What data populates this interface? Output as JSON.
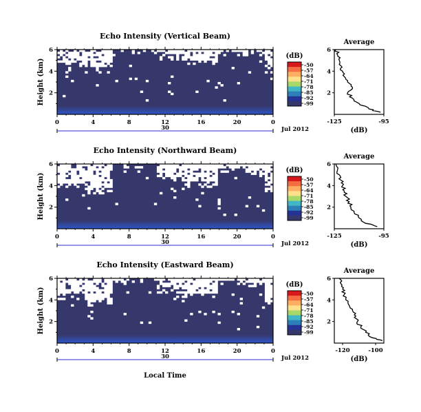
{
  "figure": {
    "date_label": "Jul 2012",
    "x_axis_label": "Local Time",
    "colors": {
      "background_echo": "#36386b",
      "grid_missing": "#ffffff",
      "axis": "#000000"
    }
  },
  "chart_data": [
    {
      "type": "heatmap",
      "title": "Echo Intensity (Vertical Beam)",
      "ylabel": "Height (km)",
      "x_ticks": [
        "0",
        "4",
        "8",
        "12",
        "16",
        "20",
        "0"
      ],
      "date_day": "30",
      "date_label": "Jul 2012",
      "y_ticks": [
        "6",
        "4",
        "2"
      ],
      "ylim": [
        0,
        6
      ],
      "xlim_hours": [
        0,
        24
      ],
      "colorbar": {
        "unit": "(dB)",
        "ticks": [
          "-50",
          "-57",
          "-64",
          "-71",
          "-78",
          "-85",
          "-92",
          "-99"
        ],
        "colors": [
          "#d7191c",
          "#f46d43",
          "#fdae61",
          "#fee08b",
          "#a6d96a",
          "#41b6c4",
          "#2c7fb8",
          "#253494",
          "#36386b"
        ]
      },
      "profile": {
        "title": "Average",
        "xlabel": "(dB)",
        "x_ticks": [
          "-125",
          "-95"
        ],
        "xlim": [
          -125,
          -95
        ],
        "y_ticks": [
          "6",
          "4",
          "2"
        ],
        "ylim": [
          0,
          6
        ],
        "height_km": [
          0.2,
          0.5,
          1.0,
          1.5,
          2.0,
          2.5,
          3.0,
          3.5,
          4.0,
          4.5,
          5.0,
          5.5,
          6.0
        ],
        "avg_db": [
          -97,
          -104,
          -110,
          -114,
          -117,
          -114,
          -117,
          -119,
          -120,
          -121,
          -122,
          -123,
          -124
        ]
      }
    },
    {
      "type": "heatmap",
      "title": "Echo Intensity (Northward Beam)",
      "ylabel": "Height (km)",
      "x_ticks": [
        "0",
        "4",
        "8",
        "12",
        "16",
        "20",
        "0"
      ],
      "date_day": "30",
      "date_label": "Jul 2012",
      "y_ticks": [
        "6",
        "4",
        "2"
      ],
      "ylim": [
        0,
        6
      ],
      "xlim_hours": [
        0,
        24
      ],
      "colorbar": {
        "unit": "(dB)",
        "ticks": [
          "-50",
          "-57",
          "-64",
          "-71",
          "-78",
          "-85",
          "-92",
          "-99"
        ],
        "colors": [
          "#d7191c",
          "#f46d43",
          "#fdae61",
          "#fee08b",
          "#a6d96a",
          "#41b6c4",
          "#2c7fb8",
          "#253494",
          "#36386b"
        ]
      },
      "profile": {
        "title": "Average",
        "xlabel": "(dB)",
        "x_ticks": [
          "-125",
          "-95"
        ],
        "xlim": [
          -125,
          -95
        ],
        "y_ticks": [
          "6",
          "4",
          "2"
        ],
        "ylim": [
          0,
          6
        ],
        "height_km": [
          0.2,
          0.5,
          1.0,
          1.5,
          2.0,
          2.5,
          3.0,
          3.5,
          4.0,
          4.5,
          5.0,
          5.5,
          6.0
        ],
        "avg_db": [
          -99,
          -106,
          -110,
          -113,
          -115,
          -116,
          -118,
          -119,
          -120,
          -121,
          -122,
          -123,
          -124
        ]
      }
    },
    {
      "type": "heatmap",
      "title": "Echo Intensity (Eastward Beam)",
      "ylabel": "Height (km)",
      "x_ticks": [
        "0",
        "4",
        "8",
        "12",
        "16",
        "20",
        "0"
      ],
      "date_day": "30",
      "date_label": "Jul 2012",
      "y_ticks": [
        "6",
        "4",
        "2"
      ],
      "ylim": [
        0,
        6
      ],
      "xlim_hours": [
        0,
        24
      ],
      "colorbar": {
        "unit": "(dB)",
        "ticks": [
          "-50",
          "-57",
          "-64",
          "-71",
          "-78",
          "-85",
          "-92",
          "-99"
        ],
        "colors": [
          "#d7191c",
          "#f46d43",
          "#fdae61",
          "#fee08b",
          "#a6d96a",
          "#41b6c4",
          "#2c7fb8",
          "#253494",
          "#36386b"
        ]
      },
      "profile": {
        "title": "Average",
        "xlabel": "(dB)",
        "x_ticks": [
          "-120",
          "-100"
        ],
        "xlim": [
          -125,
          -95
        ],
        "y_ticks": [
          "6",
          "4",
          "2"
        ],
        "ylim": [
          0,
          6
        ],
        "height_km": [
          0.2,
          0.5,
          1.0,
          1.5,
          2.0,
          2.5,
          3.0,
          3.5,
          4.0,
          4.5,
          5.0,
          5.5,
          6.0
        ],
        "avg_db": [
          -96,
          -102,
          -106,
          -109,
          -111,
          -112,
          -114,
          -116,
          -118,
          -119,
          -120,
          -121,
          -122
        ]
      }
    }
  ]
}
